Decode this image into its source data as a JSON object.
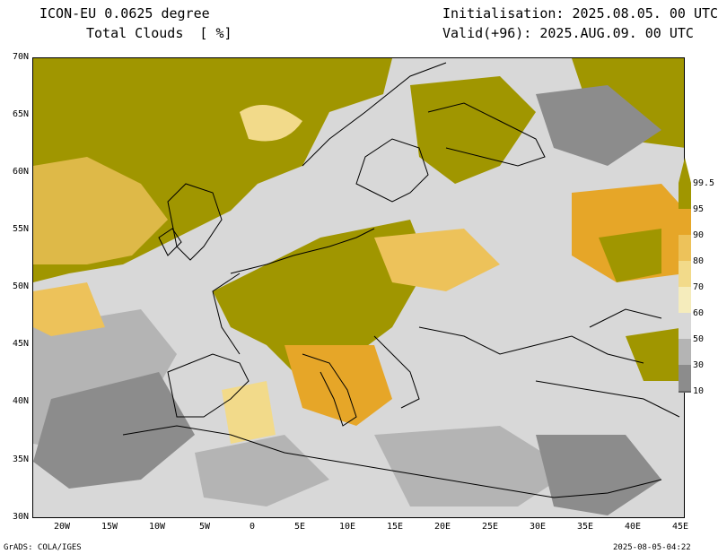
{
  "header": {
    "model": "ICON-EU 0.0625 degree",
    "variable": "Total Clouds  [ %]",
    "init": "Initialisation: 2025.08.05. 00 UTC",
    "valid": "Valid(+96): 2025.AUG.09. 00 UTC"
  },
  "axes": {
    "y_labels": [
      "70N",
      "65N",
      "60N",
      "55N",
      "50N",
      "45N",
      "40N",
      "35N",
      "30N"
    ],
    "x_labels": [
      "20W",
      "15W",
      "10W",
      "5W",
      "0",
      "5E",
      "10E",
      "15E",
      "20E",
      "25E",
      "30E",
      "35E",
      "40E",
      "45E"
    ]
  },
  "legend": {
    "labels": [
      "99.5",
      "95",
      "90",
      "80",
      "70",
      "60",
      "50",
      "30",
      "10"
    ],
    "colors": [
      "#a09600",
      "#e6a628",
      "#edc25a",
      "#f2da8a",
      "#f5ecbc",
      "#d8d8d8",
      "#b4b4b4",
      "#8c8c8c",
      "#646464"
    ]
  },
  "footer": {
    "left": "GrADS: COLA/IGES",
    "right": "2025-08-05-04:22"
  }
}
